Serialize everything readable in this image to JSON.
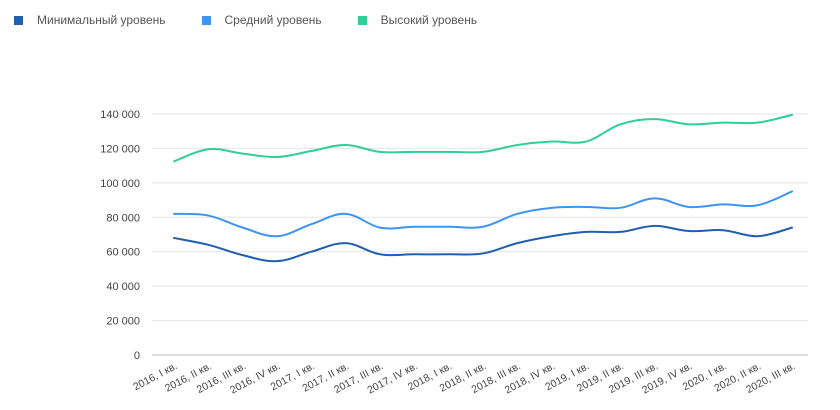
{
  "chart_data": {
    "type": "line",
    "title": "",
    "xlabel": "",
    "ylabel": "",
    "ylim": [
      0,
      140000
    ],
    "yticks": [
      0,
      20000,
      40000,
      60000,
      80000,
      100000,
      120000,
      140000
    ],
    "ytick_labels": [
      "0",
      "20 000",
      "40 000",
      "60 000",
      "80 000",
      "100 000",
      "120 000",
      "140 000"
    ],
    "grid": true,
    "legend_position": "top-left",
    "categories": [
      "2016, I кв.",
      "2016, II кв.",
      "2016, III кв.",
      "2016, IV кв.",
      "2017, I кв.",
      "2017, II кв.",
      "2017, III кв.",
      "2017, IV кв.",
      "2018, I кв.",
      "2018, II кв.",
      "2018, III кв.",
      "2018, IV кв.",
      "2019, I кв.",
      "2019, II кв.",
      "2019, III кв.",
      "2019, IV кв.",
      "2020, I кв.",
      "2020, II кв.",
      "2020, III кв."
    ],
    "series": [
      {
        "name": "Минимальный уровень",
        "color": "#1f5fad",
        "values": [
          68000,
          64000,
          58000,
          54500,
          60000,
          65000,
          58500,
          58500,
          58500,
          59000,
          65000,
          69000,
          71500,
          71500,
          75000,
          72000,
          72500,
          69000,
          74000
        ]
      },
      {
        "name": "Средний уровень",
        "color": "#3e95f0",
        "values": [
          82000,
          81000,
          74000,
          69000,
          76000,
          82000,
          74000,
          74500,
          74500,
          74500,
          82000,
          85500,
          86000,
          85500,
          91000,
          86000,
          87500,
          87000,
          95000
        ]
      },
      {
        "name": "Высокий уровень",
        "color": "#2fcf97",
        "values": [
          112500,
          119500,
          117000,
          115000,
          118500,
          122000,
          118000,
          118000,
          118000,
          118000,
          122000,
          124000,
          124000,
          134000,
          137000,
          134000,
          135000,
          135000,
          139500
        ]
      }
    ]
  }
}
